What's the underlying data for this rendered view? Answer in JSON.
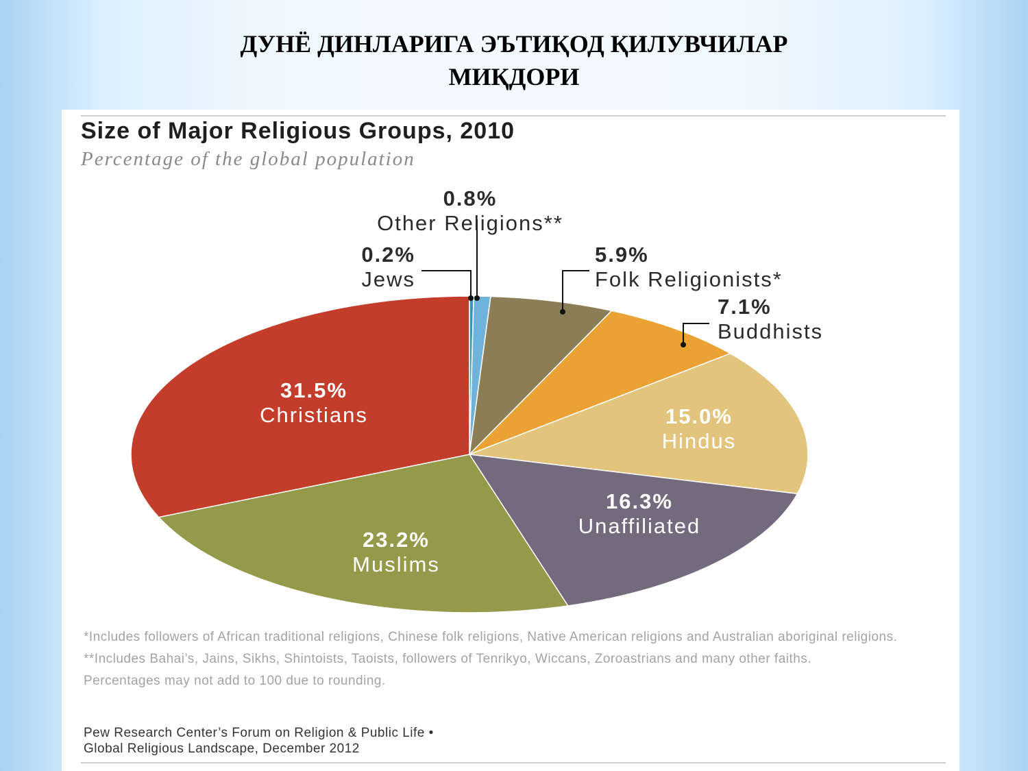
{
  "slide": {
    "title_line1": "ДУНЁ ДИНЛАРИГА ЭЪТИҚОД ҚИЛУВЧИЛАР",
    "title_line2": "МИҚДОРИ"
  },
  "chart_data": {
    "type": "pie",
    "title": "Size of Major Religious Groups, 2010",
    "subtitle": "Percentage of the global population",
    "unit": "%",
    "slices": [
      {
        "label": "Jews",
        "value": 0.2,
        "text": "0.2%",
        "color": "#3f8fbf"
      },
      {
        "label": "Other Religions**",
        "value": 0.8,
        "text": "0.8%",
        "color": "#6fb3da"
      },
      {
        "label": "Folk Religionists*",
        "value": 5.9,
        "text": "5.9%",
        "color": "#8b7d55"
      },
      {
        "label": "Buddhists",
        "value": 7.1,
        "text": "7.1%",
        "color": "#e9a233"
      },
      {
        "label": "Hindus",
        "value": 15.0,
        "text": "15.0%",
        "color": "#e3c47c"
      },
      {
        "label": "Unaffiliated",
        "value": 16.3,
        "text": "16.3%",
        "color": "#746a7e"
      },
      {
        "label": "Muslims",
        "value": 23.2,
        "text": "23.2%",
        "color": "#95994a"
      },
      {
        "label": "Christians",
        "value": 31.5,
        "text": "31.5%",
        "color": "#c43d2b"
      }
    ],
    "footnotes": [
      "*Includes followers of African traditional religions, Chinese folk religions, Native American religions and Australian aboriginal religions.",
      "**Includes Bahai’s, Jains, Sikhs, Shintoists, Taoists, followers of Tenrikyo, Wiccans, Zoroastrians and many other faiths.",
      "Percentages may not add to 100 due to rounding."
    ],
    "source_line1": "Pew Research Center’s Forum on Religion & Public Life •",
    "source_line2": "Global Religious Landscape, December 2012"
  }
}
